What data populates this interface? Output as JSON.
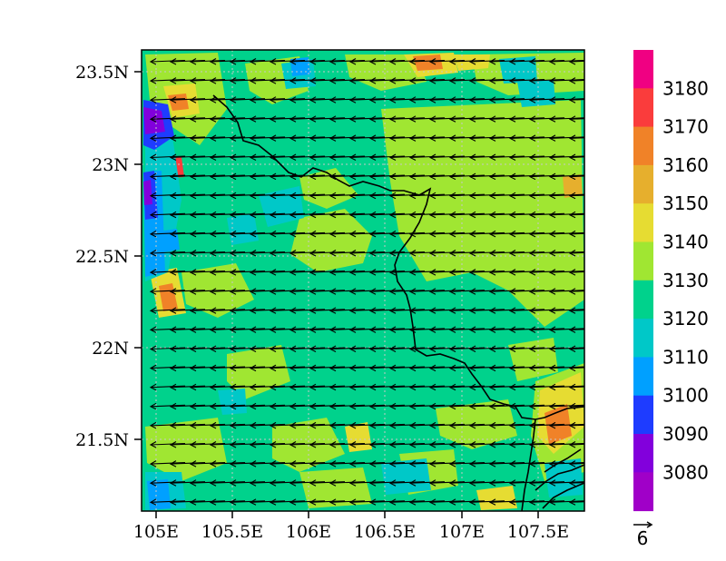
{
  "map": {
    "lat_labels": [
      "23.5N",
      "23N",
      "22.5N",
      "22N",
      "21.5N"
    ],
    "lon_labels": [
      "105E",
      "105.5E",
      "106E",
      "106.5E",
      "107E",
      "107.5E"
    ],
    "lat_range": [
      21.1,
      23.65
    ],
    "lon_range": [
      104.92,
      107.82
    ]
  },
  "colorbar": {
    "levels": [
      "3080",
      "3090",
      "3100",
      "3110",
      "3120",
      "3130",
      "3140",
      "3150",
      "3160",
      "3170",
      "3180"
    ],
    "colors": [
      "#a000c8",
      "#8200dc",
      "#1e3cff",
      "#00a0ff",
      "#00c8c8",
      "#00d28c",
      "#a0e632",
      "#e6dc32",
      "#e6af2d",
      "#f08228",
      "#fa3c3c",
      "#f00082"
    ]
  },
  "wind_legend": {
    "reference_value": "6"
  }
}
